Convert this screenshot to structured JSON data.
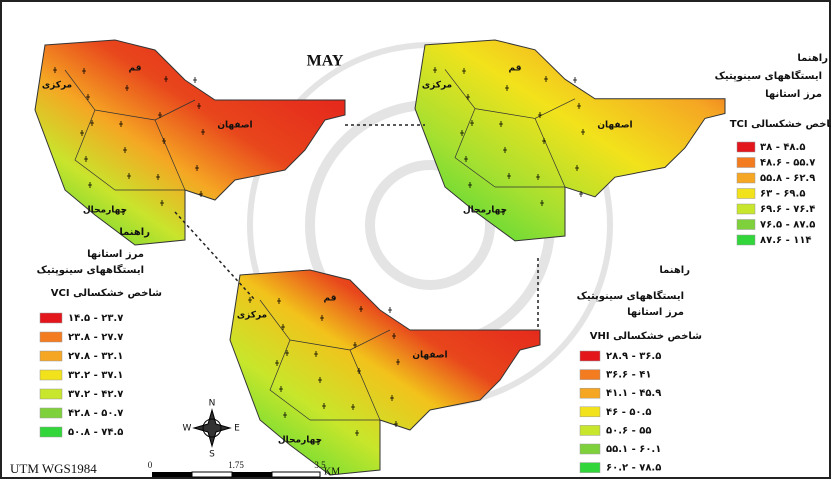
{
  "map_title": "MAY",
  "province_labels": [
    "قم",
    "مرکزی",
    "اصفهان",
    "چهارمحال"
  ],
  "legends": [
    {
      "heading": "راهنما",
      "stations": "ایستگاههای سینوپتیک",
      "borders": "مرز استانها",
      "index_title": "شاخص خشکسالی TCI",
      "classes": [
        "۳۸ - ۴۸.۵",
        "۴۸.۶ - ۵۵.۷",
        "۵۵.۸ - ۶۲.۹",
        "۶۳ - ۶۹.۵",
        "۶۹.۶ - ۷۶.۴",
        "۷۶.۵ - ۸۷.۵",
        "۸۷.۶ - ۱۱۴"
      ]
    },
    {
      "heading": "راهنما",
      "stations": "ایستگاههای سینوپتیک",
      "borders": "مرز استانها",
      "index_title": "شاخص خشکسالی VCI",
      "classes": [
        "۱۴.۵ - ۲۳.۷",
        "۲۳.۸ - ۲۷.۷",
        "۲۷.۸ - ۳۲.۱",
        "۳۲.۲ - ۳۷.۱",
        "۳۷.۲ - ۴۲.۷",
        "۴۲.۸ - ۵۰.۷",
        "۵۰.۸ - ۷۴.۵"
      ]
    },
    {
      "heading": "راهنما",
      "stations": "ایستگاههای سینوپتیک",
      "borders": "مرز استانها",
      "index_title": "شاخص خشکسالی VHI",
      "classes": [
        "۲۸.۹ - ۳۶.۵",
        "۳۶.۶ - ۴۱",
        "۴۱.۱ - ۴۵.۹",
        "۴۶ - ۵۰.۵",
        "۵۰.۶ - ۵۵",
        "۵۵.۱ - ۶۰.۱",
        "۶۰.۲ - ۷۸.۵"
      ]
    }
  ],
  "compass": {
    "north": "N",
    "east": "E",
    "south": "S",
    "west": "W"
  },
  "scale_bar": {
    "ticks": [
      "0",
      "1.75",
      "3.5"
    ],
    "unit": "KM",
    "projection": "UTM  WGS1984"
  }
}
